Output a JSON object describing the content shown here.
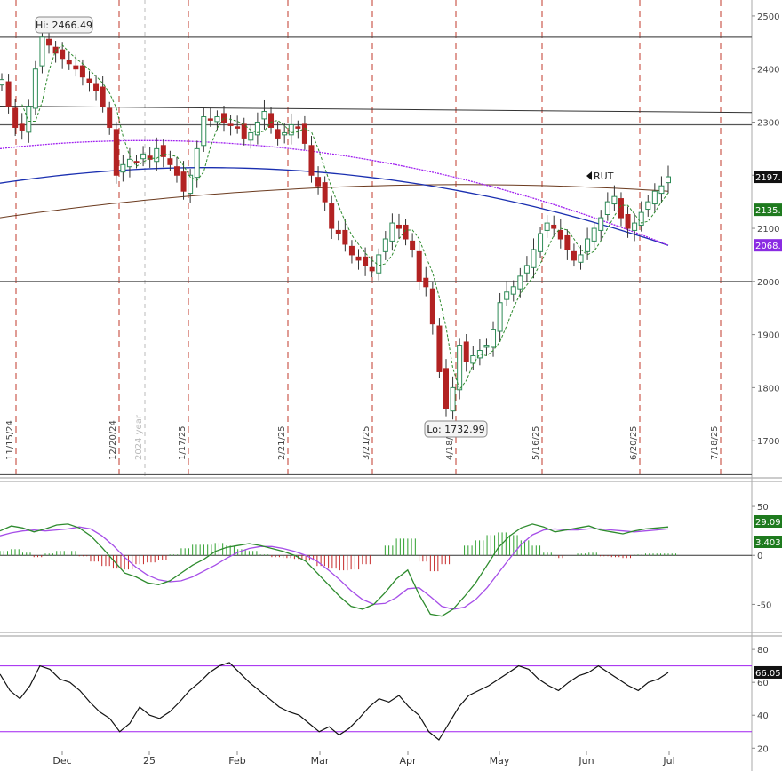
{
  "chart_data": [
    {
      "type": "candlestick",
      "symbol": "RUT",
      "y_ticks": [
        1700,
        1800,
        1900,
        2000,
        2100,
        2200,
        2300,
        2400,
        2500
      ],
      "ylim": [
        1630,
        2530
      ],
      "x_months": [
        "Dec",
        "25",
        "Feb",
        "Mar",
        "Apr",
        "May",
        "Jun",
        "Jul"
      ],
      "vertical_date_labels": [
        "11/15/24",
        "12/20/24",
        "1/17/25",
        "2/21/25",
        "3/21/25",
        "4/18/25",
        "5/16/25",
        "6/20/25",
        "7/18/25"
      ],
      "year_marker": "2024 year",
      "hi_label": "Hi: 2466.49",
      "lo_label": "Lo: 1732.99",
      "horizontal_levels": [
        2460,
        2295,
        2000,
        1636
      ],
      "trendline": {
        "start": 2330,
        "end": 2318
      },
      "last_price_labels": [
        {
          "text": "2197.",
          "value": 2197,
          "color": "#111111"
        },
        {
          "text": "2135.",
          "value": 2135,
          "color": "#1e7a1e"
        },
        {
          "text": "2068.",
          "value": 2068,
          "color": "#8a2be2"
        }
      ],
      "closes": [
        2380,
        2330,
        2290,
        2285,
        2330,
        2400,
        2460,
        2445,
        2430,
        2420,
        2410,
        2400,
        2385,
        2375,
        2360,
        2330,
        2290,
        2200,
        2220,
        2230,
        2225,
        2240,
        2230,
        2250,
        2235,
        2220,
        2200,
        2170,
        2200,
        2250,
        2310,
        2305,
        2310,
        2300,
        2295,
        2290,
        2270,
        2280,
        2300,
        2320,
        2290,
        2270,
        2280,
        2295,
        2290,
        2260,
        2200,
        2180,
        2150,
        2100,
        2090,
        2070,
        2050,
        2040,
        2030,
        2020,
        2050,
        2080,
        2110,
        2100,
        2080,
        2060,
        2000,
        1990,
        1920,
        1830,
        1760,
        1800,
        1880,
        1850,
        1860,
        1870,
        1880,
        1910,
        1960,
        1980,
        1990,
        2010,
        2030,
        2060,
        2090,
        2110,
        2100,
        2080,
        2060,
        2040,
        2050,
        2080,
        2100,
        2120,
        2150,
        2160,
        2120,
        2100,
        2110,
        2130,
        2150,
        2170,
        2180,
        2197
      ],
      "sma_brown": {
        "start": 2120,
        "mid": 2210,
        "end": 2170
      },
      "sma_blue": {
        "start": 2185,
        "mid": 2280,
        "end": 2068
      },
      "sma_purple": {
        "start": 2250,
        "mid": 2320,
        "end": 2068
      }
    },
    {
      "type": "macd",
      "y_ticks": [
        50,
        0,
        -50
      ],
      "ylim": [
        -75,
        70
      ],
      "last_labels": [
        {
          "text": "29.09",
          "color": "#1e7a1e"
        },
        {
          "text": "3.403",
          "color": "#1e7a1e"
        }
      ],
      "macd": [
        25,
        30,
        28,
        24,
        27,
        31,
        32,
        28,
        20,
        8,
        -5,
        -18,
        -22,
        -28,
        -30,
        -26,
        -18,
        -10,
        -4,
        4,
        8,
        10,
        12,
        10,
        7,
        4,
        0,
        -6,
        -18,
        -30,
        -42,
        -52,
        -55,
        -50,
        -38,
        -24,
        -15,
        -40,
        -60,
        -62,
        -55,
        -42,
        -28,
        -10,
        8,
        20,
        28,
        32,
        29,
        24,
        26,
        28,
        30,
        26,
        24,
        22,
        25,
        27,
        28,
        29
      ],
      "signal": [
        20,
        23,
        25,
        26,
        25,
        26,
        27,
        29,
        27,
        20,
        10,
        -2,
        -12,
        -20,
        -25,
        -27,
        -26,
        -22,
        -16,
        -10,
        -3,
        3,
        7,
        9,
        9,
        7,
        4,
        0,
        -6,
        -15,
        -25,
        -36,
        -45,
        -50,
        -49,
        -43,
        -34,
        -33,
        -42,
        -52,
        -55,
        -53,
        -45,
        -33,
        -18,
        -3,
        11,
        21,
        26,
        27,
        26,
        26,
        27,
        27,
        26,
        25,
        24,
        25,
        26,
        27
      ]
    },
    {
      "type": "rsi",
      "y_ticks": [
        80,
        60,
        40,
        20
      ],
      "ylim": [
        18,
        86
      ],
      "levels": [
        70,
        30
      ],
      "last_label": "66.05",
      "values": [
        65,
        55,
        50,
        58,
        70,
        68,
        62,
        60,
        55,
        48,
        42,
        38,
        30,
        35,
        45,
        40,
        38,
        42,
        48,
        55,
        60,
        66,
        70,
        72,
        66,
        60,
        55,
        50,
        45,
        42,
        40,
        35,
        30,
        33,
        28,
        32,
        38,
        45,
        50,
        48,
        52,
        45,
        40,
        30,
        25,
        35,
        45,
        52,
        55,
        58,
        62,
        66,
        70,
        68,
        62,
        58,
        55,
        60,
        64,
        66,
        70,
        66,
        62,
        58,
        55,
        60,
        62,
        66
      ]
    }
  ]
}
